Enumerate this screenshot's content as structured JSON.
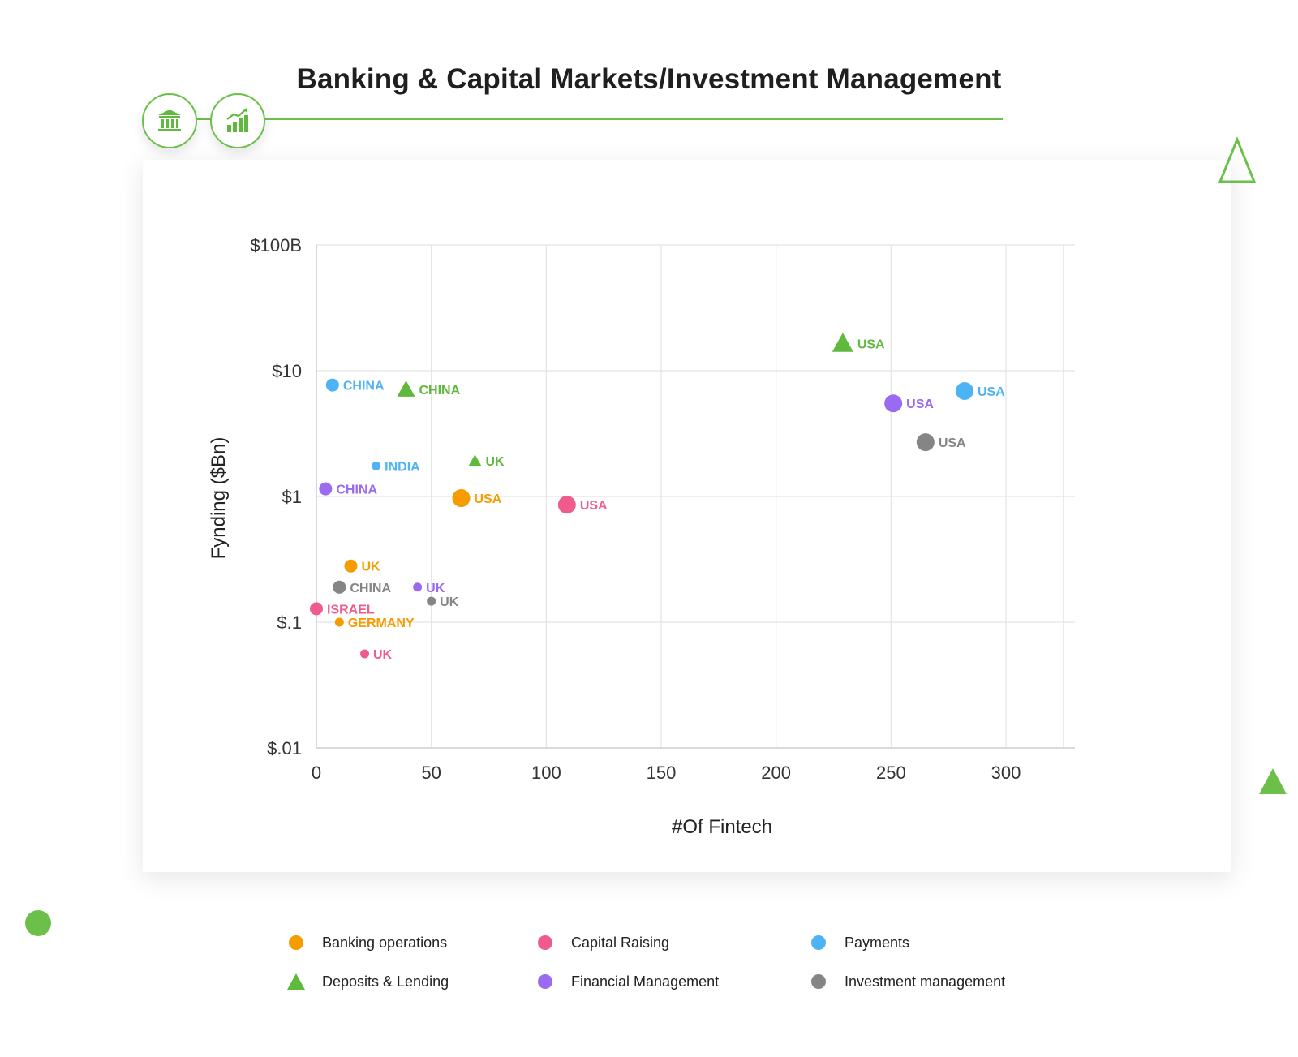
{
  "title": "Banking & Capital Markets/Investment Management",
  "icons": {
    "bank": "bank-icon",
    "growth": "bar-chart-growth-icon"
  },
  "colors": {
    "accent": "#6cc04a",
    "Banking operations": "#f59c00",
    "Capital Raising": "#ef5b8c",
    "Payments": "#4eb3f4",
    "Deposits & Lending": "#5fb93c",
    "Financial Management": "#9a6af0",
    "Investment management": "#858585"
  },
  "chart_data": {
    "type": "scatter",
    "xlabel": "#Of Fintech",
    "ylabel": "Fynding ($Bn)",
    "xlim": [
      0,
      330
    ],
    "ylim": [
      0.01,
      100
    ],
    "y_scale": "log",
    "x_ticks": [
      "0",
      "50",
      "100",
      "150",
      "200",
      "250",
      "300"
    ],
    "y_ticks": [
      "$100B",
      "$10",
      "$1",
      "$.1",
      "$.01"
    ],
    "grid": true,
    "legend_position": "bottom",
    "series": [
      {
        "name": "Banking operations",
        "marker": "circle",
        "points": [
          {
            "label": "USA",
            "x": 63,
            "y": 0.97,
            "size": "large"
          },
          {
            "label": "UK",
            "x": 15,
            "y": 0.28,
            "size": "medium"
          },
          {
            "label": "GERMANY",
            "x": 10,
            "y": 0.1,
            "size": "small"
          }
        ]
      },
      {
        "name": "Capital Raising",
        "marker": "circle",
        "points": [
          {
            "label": "USA",
            "x": 109,
            "y": 0.86,
            "size": "large"
          },
          {
            "label": "ISRAEL",
            "x": 0,
            "y": 0.128,
            "size": "medium"
          },
          {
            "label": "UK",
            "x": 21,
            "y": 0.056,
            "size": "small"
          }
        ]
      },
      {
        "name": "Payments",
        "marker": "circle",
        "points": [
          {
            "label": "USA",
            "x": 282,
            "y": 6.9,
            "size": "large"
          },
          {
            "label": "CHINA",
            "x": 7,
            "y": 7.7,
            "size": "medium"
          },
          {
            "label": "INDIA",
            "x": 26,
            "y": 1.75,
            "size": "small"
          }
        ]
      },
      {
        "name": "Deposits & Lending",
        "marker": "triangle",
        "points": [
          {
            "label": "USA",
            "x": 229,
            "y": 16.5,
            "size": "large"
          },
          {
            "label": "CHINA",
            "x": 39,
            "y": 7.1,
            "size": "medium"
          },
          {
            "label": "UK",
            "x": 69,
            "y": 1.92,
            "size": "small"
          }
        ]
      },
      {
        "name": "Financial Management",
        "marker": "circle",
        "points": [
          {
            "label": "USA",
            "x": 251,
            "y": 5.5,
            "size": "large"
          },
          {
            "label": "CHINA",
            "x": 4,
            "y": 1.15,
            "size": "medium"
          },
          {
            "label": "UK",
            "x": 44,
            "y": 0.19,
            "size": "small"
          }
        ]
      },
      {
        "name": "Investment management",
        "marker": "circle",
        "points": [
          {
            "label": "USA",
            "x": 265,
            "y": 2.7,
            "size": "large"
          },
          {
            "label": "CHINA",
            "x": 10,
            "y": 0.19,
            "size": "medium"
          },
          {
            "label": "UK",
            "x": 50,
            "y": 0.147,
            "size": "small"
          }
        ]
      }
    ]
  }
}
